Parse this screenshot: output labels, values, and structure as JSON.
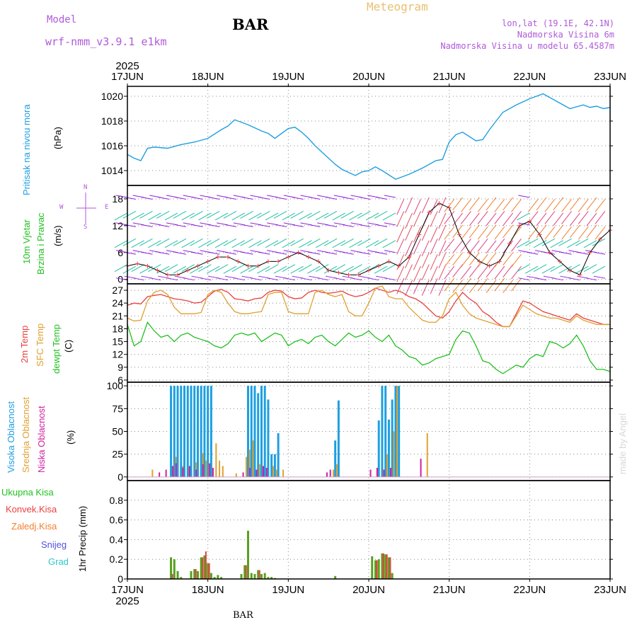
{
  "header": {
    "model_label": "Model",
    "model_name": "wrf-nmm_v3.9.1  e1km",
    "station": "BAR",
    "title": "Meteogram",
    "coords": "lon,lat (19.1E, 42.1N)",
    "elevation": "Nadmorska Visina 6m",
    "model_elevation": "Nadmorska Visina u modelu 65.4587m"
  },
  "footer": {
    "station": "BAR",
    "watermark": "made by Angel"
  },
  "colors": {
    "pressure": "#1e9fe0",
    "temp2m": "#e84040",
    "sfc": "#e0a030",
    "dew": "#20c020",
    "high_cloud": "#1e9fe0",
    "mid_cloud": "#e0a030",
    "low_cloud": "#d020a0",
    "total_rain": "#58a020",
    "conv_rain": "#e84040",
    "frozen": "#f08030",
    "snow": "#5050e0",
    "hail": "#30c8c8",
    "wind_low": "#9020e0",
    "wind_mid": "#20c0a0",
    "wind_high": "#e04080"
  },
  "icons": [
    "wind-direction-compass-icon",
    "wind-barb-arrow-icon"
  ],
  "chart_data": [
    {
      "type": "line",
      "id": "pressure",
      "ylabel_name": "Pritisak na nivou mora",
      "ylabel_unit": "(hPa)",
      "ylim": [
        1012.8,
        1020.8
      ],
      "yticks": [
        "1020",
        "1018",
        "1016",
        "1014"
      ],
      "yticks_values": [
        1020,
        1018,
        1016,
        1014
      ],
      "x_top_year": "2025",
      "x_labels": [
        "17JUN",
        "18JUN",
        "19JUN",
        "20JUN",
        "21JUN",
        "22JUN",
        "23JUN"
      ],
      "x_bottom_year": "2025",
      "xlim_hours": [
        0,
        144
      ],
      "grid": true,
      "series": [
        {
          "x": [
            0,
            2,
            4,
            6,
            8,
            12,
            16,
            20,
            24,
            28,
            30,
            32,
            36,
            40,
            42,
            44,
            48,
            50,
            52,
            54,
            56,
            60,
            62,
            64,
            68,
            70,
            72,
            74,
            76,
            80,
            82,
            84,
            88,
            92,
            94,
            96,
            98,
            100,
            104,
            106,
            108,
            112,
            116,
            120,
            124,
            128,
            130,
            132,
            136,
            138,
            140,
            142,
            144
          ],
          "values": [
            1015.3,
            1015.0,
            1014.8,
            1015.8,
            1015.9,
            1015.8,
            1016.1,
            1016.3,
            1016.6,
            1017.3,
            1017.6,
            1018.1,
            1017.7,
            1017.2,
            1017.0,
            1016.6,
            1017.4,
            1017.5,
            1017.1,
            1016.6,
            1016.0,
            1015.0,
            1014.5,
            1014.1,
            1013.6,
            1013.9,
            1014.0,
            1014.3,
            1014.0,
            1013.3,
            1013.5,
            1013.7,
            1014.2,
            1014.8,
            1014.9,
            1016.3,
            1016.9,
            1017.1,
            1016.4,
            1016.5,
            1017.3,
            1018.7,
            1019.3,
            1019.8,
            1020.2,
            1019.6,
            1019.3,
            1019.0,
            1019.3,
            1019.1,
            1019.2,
            1019.0,
            1019.1
          ]
        }
      ]
    },
    {
      "type": "scatter",
      "id": "wind",
      "ylabel_name": "10m Vjetar",
      "ylabel_name2": "Brzina i Pravac",
      "ylabel_unit": "(m/s)",
      "compass": {
        "n": "N",
        "s": "S",
        "w": "W",
        "e": "E"
      },
      "ylim": [
        -1,
        21
      ],
      "yticks": [
        "18",
        "12",
        "6",
        "0"
      ],
      "yticks_values": [
        18,
        12,
        6,
        0
      ],
      "series": [
        {
          "name": "",
          "x": [
            0,
            3,
            6,
            9,
            12,
            15,
            18,
            21,
            24,
            27,
            30,
            33,
            36,
            39,
            42,
            45,
            48,
            51,
            54,
            57,
            60,
            63,
            66,
            69,
            72,
            75,
            78,
            81,
            84,
            87,
            90,
            93,
            96,
            99,
            102,
            105,
            108,
            111,
            114,
            117,
            120,
            123,
            126,
            129,
            132,
            135,
            138,
            141,
            144
          ],
          "values": [
            3,
            3.5,
            3,
            2,
            1,
            1,
            2,
            3,
            4,
            5,
            5,
            4,
            3,
            3,
            4,
            4,
            5,
            6,
            5,
            4,
            2,
            1.5,
            1,
            1,
            2,
            3,
            4,
            3,
            5,
            10,
            15,
            17,
            16,
            10,
            6,
            4,
            3,
            4,
            8,
            12,
            13,
            10,
            6,
            4,
            2,
            1,
            6,
            9,
            11
          ]
        }
      ]
    },
    {
      "type": "line",
      "id": "temperature",
      "ylabel_name": "2m Temp",
      "ylabel_name2": "SFC Temp",
      "ylabel_name3": "dewpt Temp",
      "ylabel_unit": "(C)",
      "ylim": [
        5.5,
        28.5
      ],
      "yticks": [
        "27",
        "24",
        "21",
        "18",
        "15",
        "12",
        "9",
        "6"
      ],
      "yticks_values": [
        27,
        24,
        21,
        18,
        15,
        12,
        9,
        6
      ],
      "series": [
        {
          "name": "2m Temp",
          "x": [
            0,
            2,
            4,
            6,
            8,
            10,
            12,
            14,
            16,
            18,
            20,
            22,
            24,
            26,
            28,
            30,
            32,
            34,
            36,
            38,
            40,
            42,
            44,
            46,
            48,
            50,
            52,
            54,
            56,
            58,
            60,
            62,
            64,
            66,
            68,
            70,
            72,
            74,
            76,
            78,
            80,
            82,
            84,
            86,
            88,
            90,
            92,
            94,
            96,
            98,
            100,
            102,
            104,
            106,
            108,
            110,
            112,
            114,
            116,
            118,
            120,
            122,
            124,
            126,
            128,
            130,
            132,
            134,
            136,
            138,
            140,
            142,
            144
          ],
          "values": [
            23.5,
            24.0,
            23.8,
            25.5,
            25.8,
            26.0,
            25.5,
            25.0,
            24.8,
            24.5,
            24.0,
            24.2,
            25.5,
            26.8,
            27.2,
            26.5,
            25.0,
            24.8,
            24.5,
            25.0,
            25.2,
            26.5,
            27.0,
            26.8,
            25.5,
            25.0,
            25.2,
            26.5,
            27.0,
            26.5,
            26.3,
            26.5,
            26.8,
            26.0,
            25.5,
            25.8,
            26.5,
            27.5,
            27.0,
            26.5,
            27.0,
            26.5,
            25.5,
            25.0,
            24.0,
            22.5,
            21.0,
            20.5,
            22.0,
            24.5,
            26.5,
            25.0,
            24.0,
            22.0,
            21.0,
            19.5,
            18.5,
            18.5,
            21.5,
            24.5,
            24.0,
            23.0,
            22.0,
            21.5,
            21.0,
            20.5,
            20.0,
            21.5,
            20.5,
            20.0,
            19.5,
            19.0,
            19.0
          ]
        },
        {
          "name": "SFC Temp",
          "x": [
            0,
            2,
            4,
            6,
            8,
            10,
            12,
            14,
            16,
            18,
            20,
            22,
            24,
            26,
            28,
            30,
            32,
            34,
            36,
            38,
            40,
            42,
            44,
            46,
            48,
            50,
            52,
            54,
            56,
            58,
            60,
            62,
            64,
            66,
            68,
            70,
            72,
            74,
            76,
            78,
            80,
            82,
            84,
            86,
            88,
            90,
            92,
            94,
            96,
            98,
            100,
            102,
            104,
            106,
            108,
            110,
            112,
            114,
            116,
            118,
            120,
            122,
            124,
            126,
            128,
            130,
            132,
            134,
            136,
            138,
            140,
            142,
            144
          ],
          "values": [
            20.5,
            19.8,
            20.0,
            24.5,
            26.5,
            27.0,
            26.0,
            23.0,
            21.5,
            21.5,
            21.5,
            21.8,
            26.0,
            27.0,
            26.5,
            24.0,
            22.0,
            21.5,
            21.5,
            21.8,
            22.0,
            26.0,
            26.5,
            26.5,
            22.0,
            21.5,
            21.5,
            21.5,
            26.5,
            27.0,
            26.0,
            25.5,
            26.0,
            22.0,
            21.0,
            21.0,
            24.0,
            27.5,
            28.0,
            25.5,
            25.0,
            25.0,
            23.0,
            21.5,
            20.0,
            19.5,
            19.5,
            21.0,
            25.0,
            26.5,
            23.5,
            21.5,
            20.5,
            20.0,
            19.5,
            19.0,
            18.5,
            18.5,
            21.0,
            23.5,
            22.5,
            21.5,
            21.0,
            20.5,
            20.5,
            20.0,
            19.5,
            21.0,
            20.0,
            19.5,
            19.0,
            19.0,
            19.0
          ]
        },
        {
          "name": "dewpt Temp",
          "x": [
            0,
            2,
            4,
            6,
            8,
            10,
            12,
            14,
            16,
            18,
            20,
            22,
            24,
            26,
            28,
            30,
            32,
            34,
            36,
            38,
            40,
            42,
            44,
            46,
            48,
            50,
            52,
            54,
            56,
            58,
            60,
            62,
            64,
            66,
            68,
            70,
            72,
            74,
            76,
            78,
            80,
            82,
            84,
            86,
            88,
            90,
            92,
            94,
            96,
            98,
            100,
            102,
            104,
            106,
            108,
            110,
            112,
            114,
            116,
            118,
            120,
            122,
            124,
            126,
            128,
            130,
            132,
            134,
            136,
            138,
            140,
            142,
            144
          ],
          "values": [
            19.0,
            14.0,
            15.0,
            19.5,
            17.5,
            16.0,
            16.5,
            15.0,
            16.5,
            17.0,
            16.0,
            15.5,
            15.0,
            14.0,
            13.5,
            14.5,
            16.5,
            17.0,
            16.5,
            17.0,
            15.0,
            16.0,
            17.0,
            16.5,
            14.0,
            15.0,
            15.5,
            14.5,
            16.0,
            16.5,
            15.0,
            14.0,
            15.5,
            17.0,
            16.0,
            16.5,
            17.5,
            16.0,
            15.0,
            16.5,
            14.0,
            13.0,
            11.5,
            11.0,
            9.5,
            10.0,
            11.0,
            11.5,
            12.0,
            15.5,
            17.5,
            17.0,
            14.0,
            10.5,
            10.0,
            8.5,
            7.5,
            8.5,
            9.5,
            9.0,
            11.0,
            12.0,
            11.5,
            15.0,
            14.5,
            13.5,
            14.5,
            16.5,
            14.0,
            10.5,
            8.5,
            8.5,
            8.0
          ]
        }
      ]
    },
    {
      "type": "bar",
      "id": "clouds",
      "ylabel_name": "Visoka Oblacnost",
      "ylabel_name2": "Srednja Oblacnost",
      "ylabel_name3": "Niska Oblacnost",
      "ylabel_unit": "(%)",
      "ylim": [
        -4,
        104
      ],
      "yticks": [
        "100",
        "75",
        "50",
        "25",
        "0"
      ],
      "yticks_values": [
        100,
        75,
        50,
        25,
        0
      ],
      "series": [
        {
          "name": "Visoka Oblacnost",
          "x": [
            13,
            14,
            15,
            16,
            17,
            18,
            19,
            20,
            21,
            22,
            23,
            24,
            25,
            36,
            37,
            38,
            39,
            40,
            41,
            42,
            43,
            44,
            45,
            62,
            63,
            75,
            76,
            77,
            78,
            79,
            80,
            81
          ],
          "values": [
            100,
            100,
            100,
            100,
            100,
            100,
            100,
            100,
            100,
            100,
            100,
            100,
            100,
            100,
            100,
            100,
            92,
            100,
            100,
            85,
            25,
            25,
            48,
            40,
            84,
            62,
            100,
            100,
            63,
            85,
            100,
            100
          ]
        },
        {
          "name": "Srednja Oblacnost",
          "x": [
            7,
            14,
            16,
            18,
            20,
            22,
            23,
            24,
            26,
            27,
            28,
            32,
            35,
            36,
            37,
            39,
            43,
            44,
            46,
            61,
            62,
            74,
            76,
            77,
            78,
            79,
            80,
            89
          ],
          "values": [
            8,
            22,
            12,
            10,
            16,
            26,
            18,
            14,
            37,
            18,
            12,
            4,
            22,
            30,
            40,
            14,
            12,
            8,
            8,
            8,
            14,
            10,
            8,
            25,
            10,
            50,
            100,
            48
          ]
        },
        {
          "name": "Niska Oblacnost",
          "x": [
            10,
            12,
            14,
            15,
            17,
            19,
            21,
            23,
            25,
            26,
            35,
            37,
            39,
            41,
            42,
            60,
            61,
            73,
            75,
            77,
            79,
            88
          ],
          "values": [
            5,
            8,
            12,
            15,
            10,
            12,
            8,
            14,
            15,
            10,
            5,
            10,
            8,
            12,
            10,
            5,
            8,
            8,
            10,
            8,
            10,
            20
          ]
        }
      ]
    },
    {
      "type": "bar",
      "id": "precip",
      "ylabel_name": "Ukupna Kisa",
      "ylabel_name2": "Konvek.Kisa",
      "ylabel_name3": "Zaledj.Kisa",
      "ylabel_name4": "Snijeg",
      "ylabel_name5": "Grad",
      "ylabel_unit": "1hr Precip (mm)",
      "ylim": [
        0,
        1.0
      ],
      "yticks": [
        "0.8",
        "0.6",
        "0.4",
        "0.2",
        "0"
      ],
      "yticks_values": [
        0.8,
        0.6,
        0.4,
        0.2,
        0
      ],
      "series": [
        {
          "name": "Ukupna Kisa",
          "x": [
            13,
            14,
            15,
            16,
            19,
            20,
            21,
            22,
            23,
            24,
            25,
            26,
            27,
            28,
            34,
            35,
            36,
            37,
            38,
            39,
            40,
            41,
            42,
            43,
            44,
            62,
            73,
            74,
            75,
            76,
            77,
            78,
            79
          ],
          "values": [
            0.22,
            0.2,
            0.08,
            0.02,
            0.08,
            0.1,
            0.08,
            0.22,
            0.24,
            0.16,
            0.06,
            0.02,
            0.04,
            0.02,
            0.05,
            0.14,
            0.49,
            0.06,
            0.05,
            0.09,
            0.05,
            0.06,
            0.02,
            0.02,
            0.01,
            0.03,
            0.23,
            0.19,
            0.2,
            0.26,
            0.25,
            0.22,
            0.06
          ]
        },
        {
          "name": "Konvek.Kisa",
          "x": [
            13,
            20,
            22,
            23,
            24,
            35,
            39,
            74,
            76,
            77,
            78
          ],
          "values": [
            0.05,
            0.1,
            0.22,
            0.28,
            0.16,
            0.14,
            0.09,
            0.19,
            0.26,
            0.25,
            0.22
          ]
        }
      ]
    }
  ]
}
